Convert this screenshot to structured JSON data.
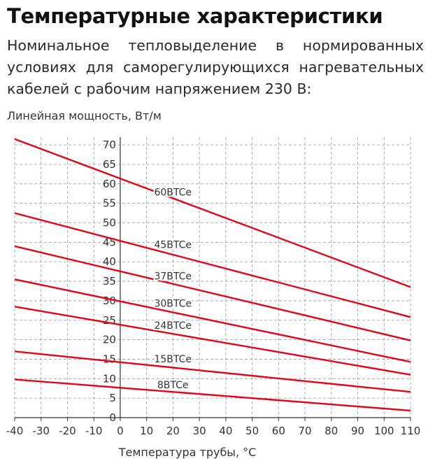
{
  "page": {
    "title": "Температурные характеристики",
    "intro_lines": [
      "Номинальное тепловыделение в нормированных",
      "условиях для саморегулирующихся нагревательных",
      "кабелей с рабочим напряжением 230 В:"
    ]
  },
  "chart_data": {
    "type": "line",
    "title": "",
    "xlabel": "Температура трубы, °C",
    "ylabel": "Линейная мощность, Вт/м",
    "x_ticks": [
      -40,
      -30,
      -20,
      -10,
      0,
      10,
      20,
      30,
      40,
      50,
      60,
      70,
      80,
      90,
      100,
      110
    ],
    "y_ticks": [
      0,
      5,
      10,
      15,
      20,
      25,
      30,
      35,
      40,
      45,
      50,
      55,
      60,
      65,
      70
    ],
    "xlim": [
      -40,
      110
    ],
    "ylim": [
      0,
      72
    ],
    "grid": true,
    "line_color": "#e3061a",
    "series": [
      {
        "name": "60BTCe",
        "x": [
          -40,
          110
        ],
        "y": [
          71.5,
          33.5
        ],
        "label_x": 12,
        "label_y": 57
      },
      {
        "name": "45BTCe",
        "x": [
          -40,
          110
        ],
        "y": [
          52.5,
          25.8
        ],
        "label_x": 12,
        "label_y": 43.5
      },
      {
        "name": "37BTCe",
        "x": [
          -40,
          110
        ],
        "y": [
          44.0,
          19.8
        ],
        "label_x": 12,
        "label_y": 35.5
      },
      {
        "name": "30BTCe",
        "x": [
          -40,
          110
        ],
        "y": [
          35.5,
          14.3
        ],
        "label_x": 12,
        "label_y": 28.5
      },
      {
        "name": "24BTCe",
        "x": [
          -40,
          110
        ],
        "y": [
          28.5,
          11.0
        ],
        "label_x": 12,
        "label_y": 22.8
      },
      {
        "name": "15BTCe",
        "x": [
          -40,
          110
        ],
        "y": [
          17.0,
          6.6
        ],
        "label_x": 12,
        "label_y": 14.2
      },
      {
        "name": "8BTCe",
        "x": [
          -40,
          110
        ],
        "y": [
          9.8,
          1.8
        ],
        "label_x": 12,
        "label_y": 7.5
      }
    ]
  }
}
